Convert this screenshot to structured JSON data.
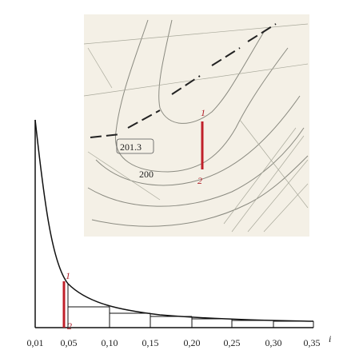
{
  "map": {
    "spot_height": "201.3",
    "contour_label": "200",
    "point_1": "1",
    "point_2": "2"
  },
  "graph": {
    "point_1": "1",
    "point_2": "2",
    "x_labels": [
      "0,01",
      "0,05",
      "0,10",
      "0,15",
      "0,20",
      "0,25",
      "0,30",
      "0,35"
    ],
    "x_axis_label": "i"
  }
}
